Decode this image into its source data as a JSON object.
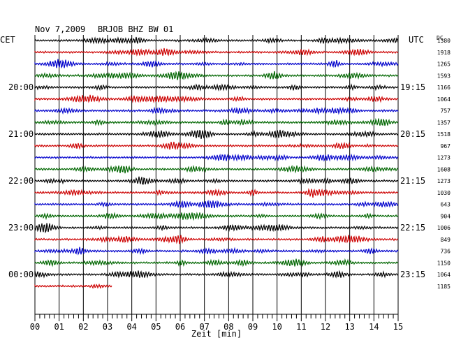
{
  "header": {
    "date": "Nov 7,2009",
    "station": "BRJOB BHZ BW 01",
    "left_zone": "CET",
    "right_zone": "UTC",
    "dc_label": "DC"
  },
  "colors": {
    "cycle": [
      "#000000",
      "#cc0000",
      "#0000cc",
      "#006600"
    ],
    "grid": "#000000",
    "background": "#ffffff"
  },
  "chart_data": {
    "type": "line",
    "title": "Nov 7,2009   BRJOB BHZ BW 01",
    "xlabel": "Zeit [min]",
    "xlim": [
      0,
      15
    ],
    "x_ticks": [
      "00",
      "01",
      "02",
      "03",
      "04",
      "05",
      "06",
      "07",
      "08",
      "09",
      "10",
      "11",
      "12",
      "13",
      "14",
      "15"
    ],
    "left_hour_labels": [
      "20:00",
      "21:00",
      "22:00",
      "23:00",
      "00:00"
    ],
    "right_hour_labels": [
      "19:15",
      "20:15",
      "21:15",
      "22:15",
      "23:15"
    ],
    "hour_label_rows": [
      4,
      8,
      12,
      16,
      20
    ],
    "trace_count": 22,
    "last_trace_minutes": 3.2,
    "dc_offsets": [
      1380,
      1918,
      1265,
      1593,
      1166,
      1064,
      757,
      1357,
      1518,
      967,
      1273,
      1608,
      1273,
      1030,
      643,
      904,
      1006,
      849,
      736,
      1150,
      1064,
      1185
    ]
  }
}
